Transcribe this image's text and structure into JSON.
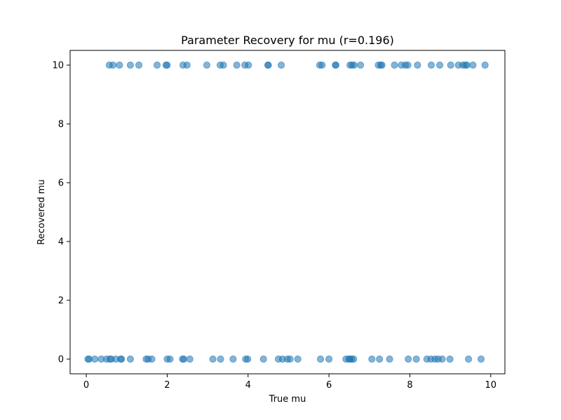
{
  "chart_data": {
    "type": "scatter",
    "title": "Parameter Recovery for mu (r=0.196)",
    "xlabel": "True mu",
    "ylabel": "Recovered mu",
    "xlim": [
      -0.4,
      10.35
    ],
    "ylim": [
      -0.5,
      10.5
    ],
    "xticks": [
      0,
      2,
      4,
      6,
      8,
      10
    ],
    "yticks": [
      0,
      2,
      4,
      6,
      8,
      10
    ],
    "grid": false,
    "marker_color": "#1f77b4",
    "marker_alpha": 0.55,
    "series": [
      {
        "x": [
          0.57,
          0.66,
          0.82,
          1.09,
          1.3,
          1.75,
          1.97,
          2.0,
          2.39,
          2.49,
          2.98,
          3.31,
          3.39,
          3.72,
          3.92,
          4.01,
          4.49,
          4.5,
          4.82,
          5.77,
          5.83,
          6.16,
          6.17,
          6.52,
          6.57,
          6.62,
          6.78,
          7.22,
          7.28,
          7.31,
          7.62,
          7.79,
          7.89,
          7.95,
          8.19,
          8.53,
          8.74,
          9.01,
          9.2,
          9.31,
          9.37,
          9.41,
          9.56,
          9.86
        ],
        "y": [
          10,
          10,
          10,
          10,
          10,
          10,
          10,
          10,
          10,
          10,
          10,
          10,
          10,
          10,
          10,
          10,
          10,
          10,
          10,
          10,
          10,
          10,
          10,
          10,
          10,
          10,
          10,
          10,
          10,
          10,
          10,
          10,
          10,
          10,
          10,
          10,
          10,
          10,
          10,
          10,
          10,
          10,
          10,
          10
        ]
      },
      {
        "x": [
          0.04,
          0.07,
          0.21,
          0.37,
          0.5,
          0.58,
          0.62,
          0.73,
          0.85,
          0.87,
          1.09,
          1.48,
          1.53,
          1.62,
          2.0,
          2.07,
          2.38,
          2.41,
          2.56,
          3.13,
          3.32,
          3.63,
          3.94,
          3.99,
          4.38,
          4.75,
          4.85,
          4.97,
          5.04,
          5.23,
          5.79,
          6.0,
          6.42,
          6.49,
          6.52,
          6.56,
          6.61,
          7.06,
          7.25,
          7.5,
          7.96,
          8.16,
          8.42,
          8.52,
          8.62,
          8.7,
          8.8,
          8.99,
          9.45,
          9.76
        ],
        "y": [
          0,
          0,
          0,
          0,
          0,
          0,
          0,
          0,
          0,
          0,
          0,
          0,
          0,
          0,
          0,
          0,
          0,
          0,
          0,
          0,
          0,
          0,
          0,
          0,
          0,
          0,
          0,
          0,
          0,
          0,
          0,
          0,
          0,
          0,
          0,
          0,
          0,
          0,
          0,
          0,
          0,
          0,
          0,
          0,
          0,
          0,
          0,
          0,
          0,
          0
        ]
      }
    ]
  }
}
